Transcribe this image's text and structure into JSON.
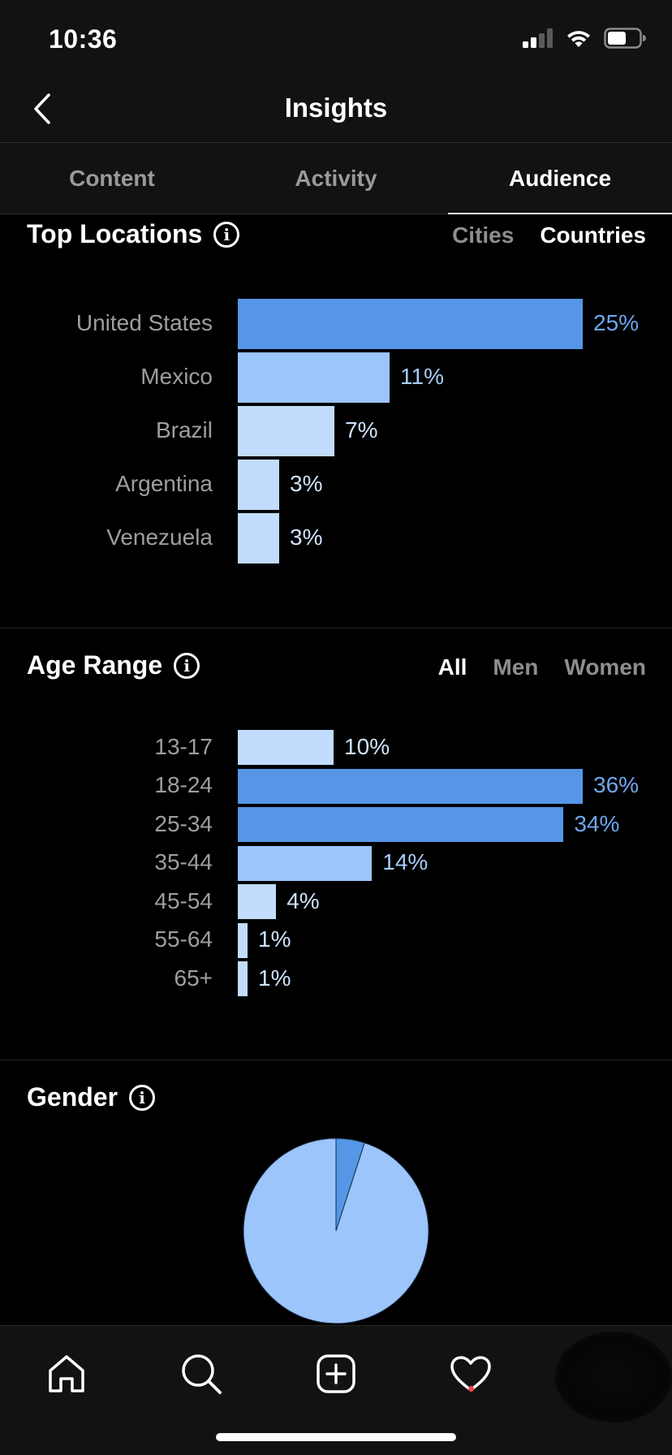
{
  "status_bar": {
    "time": "10:36"
  },
  "header": {
    "title": "Insights"
  },
  "tabs": [
    {
      "label": "Content",
      "active": false
    },
    {
      "label": "Activity",
      "active": false
    },
    {
      "label": "Audience",
      "active": true
    }
  ],
  "top_locations": {
    "title": "Top Locations",
    "filters": [
      {
        "label": "Cities",
        "active": false
      },
      {
        "label": "Countries",
        "active": true
      }
    ],
    "chart_data": {
      "type": "bar",
      "orientation": "horizontal",
      "categories": [
        "United States",
        "Mexico",
        "Brazil",
        "Argentina",
        "Venezuela"
      ],
      "values": [
        25,
        11,
        7,
        3,
        3
      ],
      "value_labels": [
        "25%",
        "11%",
        "7%",
        "3%",
        "3%"
      ],
      "unit": "%"
    }
  },
  "age_range": {
    "title": "Age Range",
    "filters": [
      {
        "label": "All",
        "active": true
      },
      {
        "label": "Men",
        "active": false
      },
      {
        "label": "Women",
        "active": false
      }
    ],
    "chart_data": {
      "type": "bar",
      "orientation": "horizontal",
      "categories": [
        "13-17",
        "18-24",
        "25-34",
        "35-44",
        "45-54",
        "55-64",
        "65+"
      ],
      "values": [
        10,
        36,
        34,
        14,
        4,
        1,
        1
      ],
      "value_labels": [
        "10%",
        "36%",
        "34%",
        "14%",
        "4%",
        "1%",
        "1%"
      ],
      "unit": "%"
    }
  },
  "gender": {
    "title": "Gender",
    "chart_data": {
      "type": "pie",
      "values": [
        5,
        95
      ],
      "colors": [
        "#5596e6",
        "#9bc5fb"
      ]
    }
  },
  "colors": {
    "bar_primary": "#5596e6",
    "bar_medium": "#9bc5fb",
    "bar_light": "#c2dcfd",
    "label_primary": "#6ea6ee",
    "label_medium": "#a8ccfa",
    "label_light": "#cfe3fd"
  },
  "bottom_nav": {
    "items": [
      {
        "icon": "home-icon"
      },
      {
        "icon": "search-icon"
      },
      {
        "icon": "add-post-icon"
      },
      {
        "icon": "activity-heart-icon"
      },
      {
        "icon": "profile-avatar"
      }
    ]
  }
}
